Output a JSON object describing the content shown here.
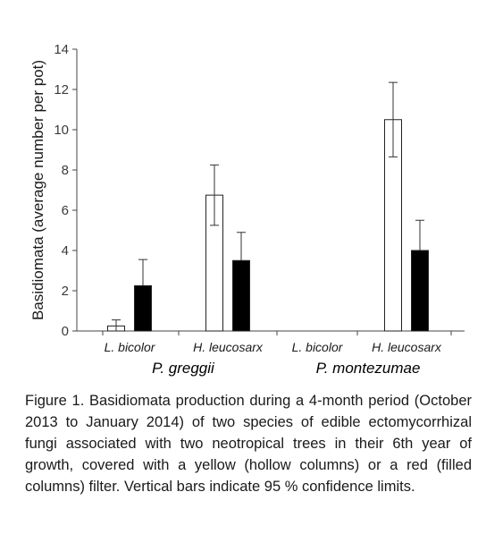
{
  "chart_data": {
    "type": "bar",
    "title": "",
    "ylabel": "Basidiomata (average number per pot)",
    "xlabel": "",
    "ylim": [
      0,
      14
    ],
    "yticks": [
      "0",
      "2",
      "4",
      "6",
      "8",
      "10",
      "12",
      "14"
    ],
    "categories": [
      "L. bicolor",
      "H. leucosarx",
      "L. bicolor",
      "H. leucosarx"
    ],
    "groups": [
      "P. greggii",
      "P. montezumae"
    ],
    "series": [
      {
        "fill": "#ffffff",
        "values": [
          0.25,
          6.75,
          null,
          10.5
        ],
        "ci_low": [
          0.0,
          5.25,
          null,
          8.65
        ],
        "ci_high": [
          0.55,
          8.25,
          null,
          12.35
        ]
      },
      {
        "fill": "#000000",
        "values": [
          2.25,
          3.5,
          null,
          4.0
        ],
        "ci_low": [
          2.25,
          3.5,
          null,
          4.0
        ],
        "ci_high": [
          3.55,
          4.9,
          null,
          5.5
        ]
      }
    ],
    "grid": false,
    "legend": "none"
  },
  "caption": "Figure 1. Basidiomata production during a 4-month period (October 2013 to January 2014) of two species of edible ectomycorrhizal fungi associated with two neotropical trees in their 6th year of growth, covered with a yellow (hollow columns) or a red (filled columns) filter. Vertical bars indicate 95 % confidence limits."
}
